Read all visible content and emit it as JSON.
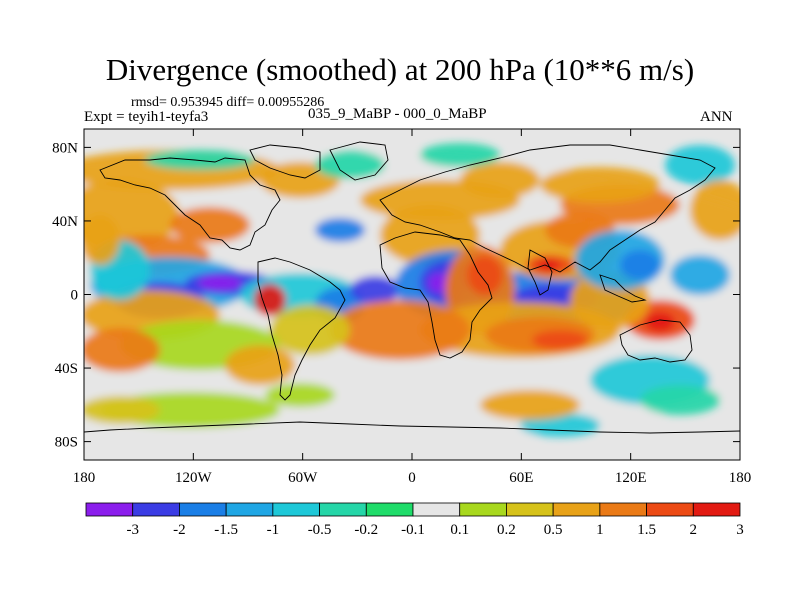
{
  "title": "Divergence (smoothed) at 200 hPa (10**6 m/s)",
  "stats": {
    "text": "rmsd= 0.953945  diff= 0.00955286"
  },
  "experiment": "Expt = teyih1-teyfa3",
  "period": "035_9_MaBP - 000_0_MaBP",
  "season": "ANN",
  "y_ticks": [
    "80N",
    "40N",
    "0",
    "40S",
    "80S"
  ],
  "x_ticks": [
    "180",
    "120W",
    "60W",
    "0",
    "60E",
    "120E",
    "180"
  ],
  "colorbar": {
    "labels": [
      "-3",
      "-2",
      "-1.5",
      "-1",
      "-0.5",
      "-0.2",
      "-0.1",
      "0.1",
      "0.2",
      "0.5",
      "1",
      "1.5",
      "2",
      "3"
    ],
    "colors": [
      "#8b1eec",
      "#3b3ce4",
      "#1a7ee6",
      "#1fa6e4",
      "#1ec8d8",
      "#25d6a8",
      "#1fdc6a",
      "#e6e6e6",
      "#a8d81e",
      "#d6c21a",
      "#e8a218",
      "#ea7a16",
      "#ec4a14",
      "#e21a12"
    ]
  },
  "lat_range": [
    -90,
    90
  ],
  "lon_range": [
    -180,
    180
  ]
}
